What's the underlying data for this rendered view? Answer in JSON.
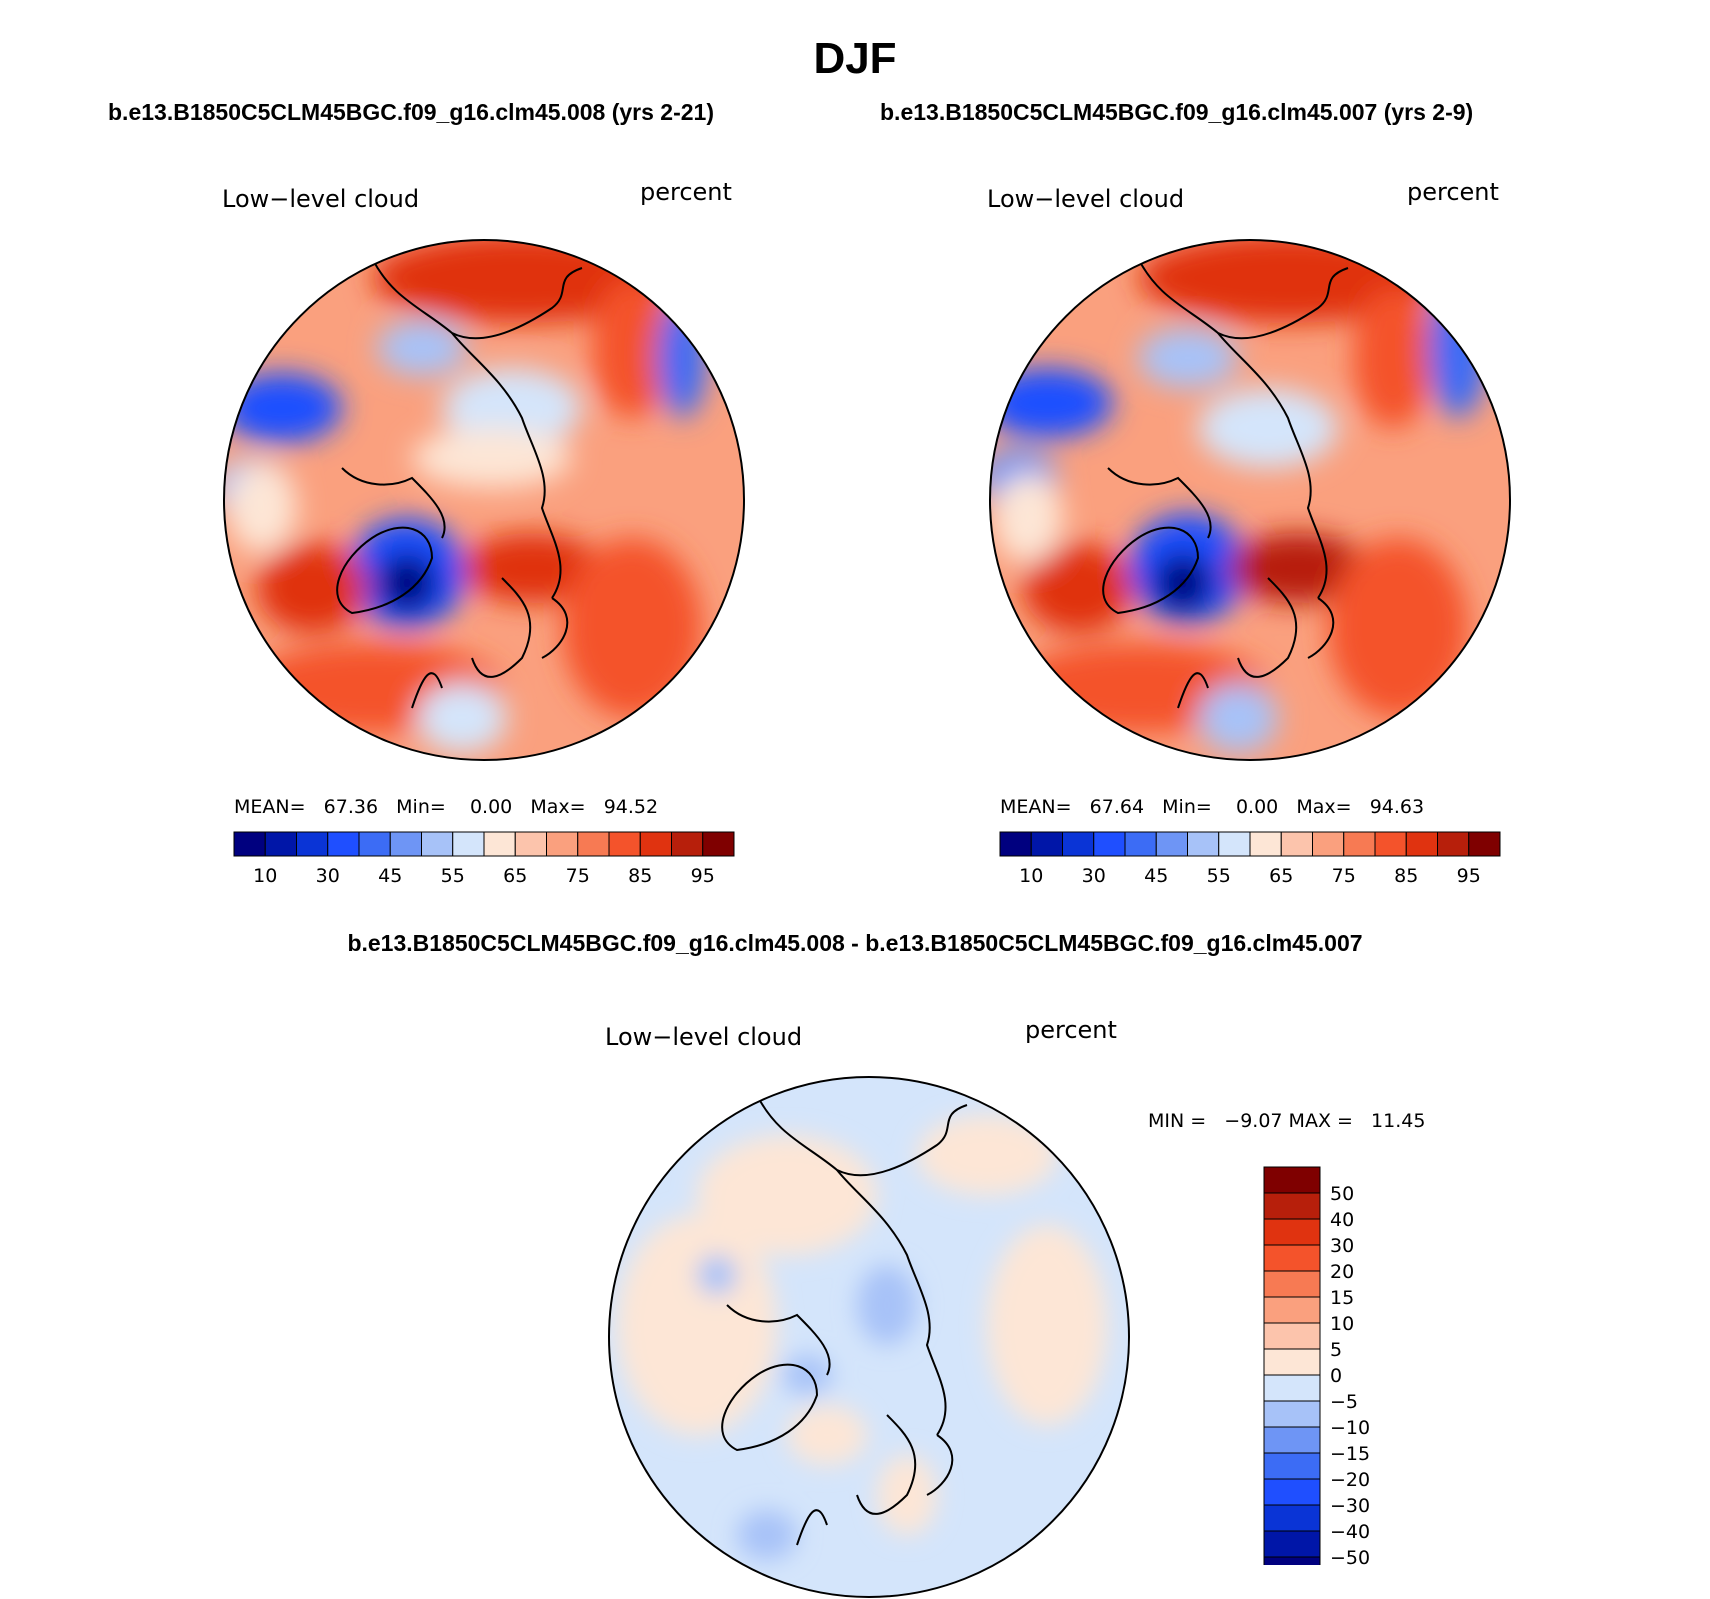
{
  "title": "DJF",
  "panels": [
    {
      "case": "b.e13.B1850C5CLM45BGC.f09_g16.clm45.008 (yrs 2-21)",
      "variable": "Low−level cloud",
      "units": "percent",
      "stats": {
        "mean": "67.36",
        "min": "0.00",
        "max": "94.52"
      },
      "stats_text": "MEAN=   67.36   Min=    0.00   Max=   94.52"
    },
    {
      "case": "b.e13.B1850C5CLM45BGC.f09_g16.clm45.007 (yrs 2-9)",
      "variable": "Low−level cloud",
      "units": "percent",
      "stats": {
        "mean": "67.64",
        "min": "0.00",
        "max": "94.63"
      },
      "stats_text": "MEAN=   67.64   Min=    0.00   Max=   94.63"
    }
  ],
  "difference": {
    "title": "b.e13.B1850C5CLM45BGC.f09_g16.clm45.008 - b.e13.B1850C5CLM45BGC.f09_g16.clm45.007",
    "variable": "Low−level cloud",
    "units": "percent",
    "stats_text": "MIN =   −9.07 MAX =   11.45",
    "min": "-9.07",
    "max": "11.45"
  },
  "colorbars": {
    "abs_labels": [
      "10",
      "30",
      "45",
      "55",
      "65",
      "75",
      "85",
      "95"
    ],
    "abs_colors": [
      "#00007f",
      "#0016a8",
      "#0a34d6",
      "#1f4fff",
      "#3c6cf5",
      "#6e95f5",
      "#a7c2f8",
      "#d4e5fb",
      "#fde6d6",
      "#fcc4ac",
      "#faa07e",
      "#f77a53",
      "#f4532b",
      "#e03310",
      "#b71f0b",
      "#7f0000"
    ],
    "diff_labels": [
      "50",
      "40",
      "30",
      "20",
      "15",
      "10",
      "5",
      "0",
      "−5",
      "−10",
      "−15",
      "−20",
      "−30",
      "−40",
      "−50"
    ],
    "diff_colors": [
      "#7f0000",
      "#b71f0b",
      "#e03310",
      "#f4532b",
      "#f77a53",
      "#faa07e",
      "#fcc4ac",
      "#fde6d6",
      "#d4e5fb",
      "#a7c2f8",
      "#6e95f5",
      "#3c6cf5",
      "#1f4fff",
      "#0a34d6",
      "#0016a8",
      "#00007f"
    ]
  }
}
